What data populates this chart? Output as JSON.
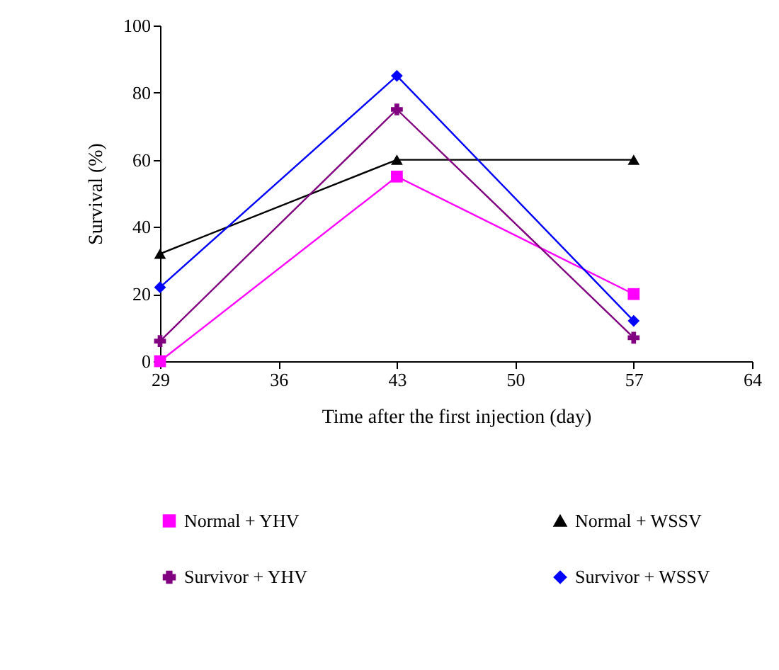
{
  "chart_data": {
    "type": "line",
    "xlabel": "Time after the first injection (day)",
    "ylabel": "Survival (%)",
    "x": [
      29,
      43,
      57
    ],
    "xlim": [
      29,
      64
    ],
    "xticks": [
      29,
      36,
      43,
      50,
      57,
      64
    ],
    "ylim": [
      0,
      100
    ],
    "yticks": [
      0,
      20,
      40,
      60,
      80,
      100
    ],
    "grid": false,
    "legend": "bottom",
    "series": [
      {
        "name": "Normal + YHV",
        "color": "#ff00ff",
        "marker": "square",
        "values": [
          0,
          55,
          20
        ]
      },
      {
        "name": "Normal + WSSV",
        "color": "#000000",
        "marker": "triangle",
        "values": [
          32,
          60,
          60
        ]
      },
      {
        "name": "Survivor + YHV",
        "color": "#800080",
        "marker": "cross",
        "values": [
          6,
          75,
          7
        ]
      },
      {
        "name": "Survivor + WSSV",
        "color": "#0000ff",
        "marker": "diamond",
        "values": [
          22,
          85,
          12
        ]
      }
    ]
  }
}
